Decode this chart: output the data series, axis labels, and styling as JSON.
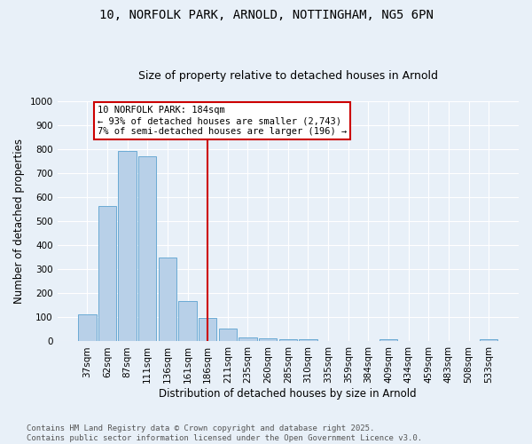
{
  "title_line1": "10, NORFOLK PARK, ARNOLD, NOTTINGHAM, NG5 6PN",
  "title_line2": "Size of property relative to detached houses in Arnold",
  "xlabel": "Distribution of detached houses by size in Arnold",
  "ylabel": "Number of detached properties",
  "categories": [
    "37sqm",
    "62sqm",
    "87sqm",
    "111sqm",
    "136sqm",
    "161sqm",
    "186sqm",
    "211sqm",
    "235sqm",
    "260sqm",
    "285sqm",
    "310sqm",
    "335sqm",
    "359sqm",
    "384sqm",
    "409sqm",
    "434sqm",
    "459sqm",
    "483sqm",
    "508sqm",
    "533sqm"
  ],
  "values": [
    113,
    563,
    793,
    770,
    350,
    167,
    98,
    55,
    18,
    11,
    10,
    10,
    0,
    0,
    0,
    10,
    0,
    0,
    0,
    0,
    8
  ],
  "bar_color": "#b8d0e8",
  "bar_edge_color": "#6aaad4",
  "vline_color": "#cc0000",
  "annotation_text": "10 NORFOLK PARK: 184sqm\n← 93% of detached houses are smaller (2,743)\n7% of semi-detached houses are larger (196) →",
  "annotation_box_facecolor": "#ffffff",
  "annotation_box_edgecolor": "#cc0000",
  "ylim": [
    0,
    1000
  ],
  "yticks": [
    0,
    100,
    200,
    300,
    400,
    500,
    600,
    700,
    800,
    900,
    1000
  ],
  "background_color": "#e8f0f8",
  "grid_color": "#ffffff",
  "footer_text": "Contains HM Land Registry data © Crown copyright and database right 2025.\nContains public sector information licensed under the Open Government Licence v3.0.",
  "title_fontsize": 10,
  "subtitle_fontsize": 9,
  "axis_label_fontsize": 8.5,
  "tick_fontsize": 7.5,
  "annotation_fontsize": 7.5,
  "footer_fontsize": 6.5
}
